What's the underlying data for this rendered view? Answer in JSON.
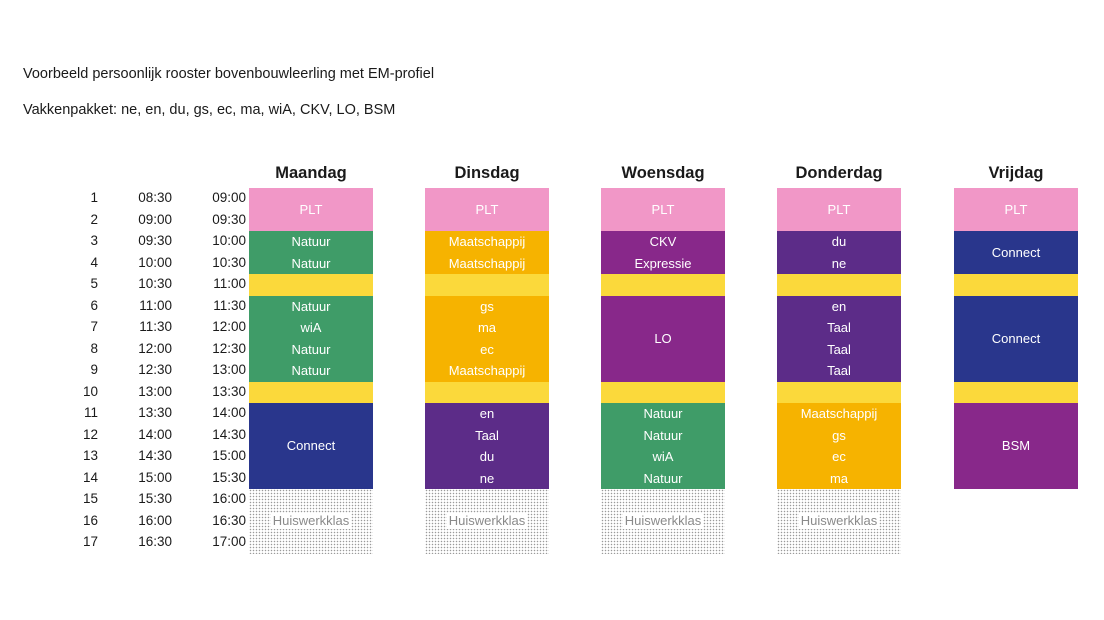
{
  "title": "Voorbeeld persoonlijk rooster bovenbouwleerling met EM-profiel",
  "subtitle": "Vakkenpakket: ne, en, du, gs, ec, ma, wiA, CKV, LO, BSM",
  "colors": {
    "pink": "#f197c7",
    "green": "#3f9c68",
    "yellow": "#fbd93b",
    "orange": "#f6b300",
    "purple": "#5c2c88",
    "magenta": "#88288a",
    "navy": "#29368c"
  },
  "periods": [
    {
      "num": "1",
      "start": "08:30",
      "end": "09:00"
    },
    {
      "num": "2",
      "start": "09:00",
      "end": "09:30"
    },
    {
      "num": "3",
      "start": "09:30",
      "end": "10:00"
    },
    {
      "num": "4",
      "start": "10:00",
      "end": "10:30"
    },
    {
      "num": "5",
      "start": "10:30",
      "end": "11:00"
    },
    {
      "num": "6",
      "start": "11:00",
      "end": "11:30"
    },
    {
      "num": "7",
      "start": "11:30",
      "end": "12:00"
    },
    {
      "num": "8",
      "start": "12:00",
      "end": "12:30"
    },
    {
      "num": "9",
      "start": "12:30",
      "end": "13:00"
    },
    {
      "num": "10",
      "start": "13:00",
      "end": "13:30"
    },
    {
      "num": "11",
      "start": "13:30",
      "end": "14:00"
    },
    {
      "num": "12",
      "start": "14:00",
      "end": "14:30"
    },
    {
      "num": "13",
      "start": "14:30",
      "end": "15:00"
    },
    {
      "num": "14",
      "start": "15:00",
      "end": "15:30"
    },
    {
      "num": "15",
      "start": "15:30",
      "end": "16:00"
    },
    {
      "num": "16",
      "start": "16:00",
      "end": "16:30"
    },
    {
      "num": "17",
      "start": "16:30",
      "end": "17:00"
    }
  ],
  "days": [
    {
      "name": "Maandag",
      "blocks": [
        {
          "start": 1,
          "span": 2,
          "color": "pink",
          "lines": [
            "PLT"
          ]
        },
        {
          "start": 3,
          "span": 2,
          "color": "green",
          "lines": [
            "Natuur",
            "Natuur"
          ]
        },
        {
          "start": 5,
          "span": 1,
          "color": "yellow",
          "lines": []
        },
        {
          "start": 6,
          "span": 4,
          "color": "green",
          "lines": [
            "Natuur",
            "wiA",
            "Natuur",
            "Natuur"
          ]
        },
        {
          "start": 10,
          "span": 1,
          "color": "yellow",
          "lines": []
        },
        {
          "start": 11,
          "span": 4,
          "color": "navy",
          "lines": [
            "Connect"
          ]
        },
        {
          "start": 15,
          "span": 3,
          "color": "dots",
          "lines": [
            "Huiswerkklas"
          ]
        }
      ]
    },
    {
      "name": "Dinsdag",
      "blocks": [
        {
          "start": 1,
          "span": 2,
          "color": "pink",
          "lines": [
            "PLT"
          ]
        },
        {
          "start": 3,
          "span": 2,
          "color": "orange",
          "lines": [
            "Maatschappij",
            "Maatschappij"
          ]
        },
        {
          "start": 5,
          "span": 1,
          "color": "yellow",
          "lines": []
        },
        {
          "start": 6,
          "span": 4,
          "color": "orange",
          "lines": [
            "gs",
            "ma",
            "ec",
            "Maatschappij"
          ]
        },
        {
          "start": 10,
          "span": 1,
          "color": "yellow",
          "lines": []
        },
        {
          "start": 11,
          "span": 4,
          "color": "purple",
          "lines": [
            "en",
            "Taal",
            "du",
            "ne"
          ]
        },
        {
          "start": 15,
          "span": 3,
          "color": "dots",
          "lines": [
            "Huiswerkklas"
          ]
        }
      ]
    },
    {
      "name": "Woensdag",
      "blocks": [
        {
          "start": 1,
          "span": 2,
          "color": "pink",
          "lines": [
            "PLT"
          ]
        },
        {
          "start": 3,
          "span": 2,
          "color": "magenta",
          "lines": [
            "CKV",
            "Expressie"
          ]
        },
        {
          "start": 5,
          "span": 1,
          "color": "yellow",
          "lines": []
        },
        {
          "start": 6,
          "span": 4,
          "color": "magenta",
          "lines": [
            "LO"
          ]
        },
        {
          "start": 10,
          "span": 1,
          "color": "yellow",
          "lines": []
        },
        {
          "start": 11,
          "span": 4,
          "color": "green",
          "lines": [
            "Natuur",
            "Natuur",
            "wiA",
            "Natuur"
          ]
        },
        {
          "start": 15,
          "span": 3,
          "color": "dots",
          "lines": [
            "Huiswerkklas"
          ]
        }
      ]
    },
    {
      "name": "Donderdag",
      "blocks": [
        {
          "start": 1,
          "span": 2,
          "color": "pink",
          "lines": [
            "PLT"
          ]
        },
        {
          "start": 3,
          "span": 2,
          "color": "purple",
          "lines": [
            "du",
            "ne"
          ]
        },
        {
          "start": 5,
          "span": 1,
          "color": "yellow",
          "lines": []
        },
        {
          "start": 6,
          "span": 4,
          "color": "purple",
          "lines": [
            "en",
            "Taal",
            "Taal",
            "Taal"
          ]
        },
        {
          "start": 10,
          "span": 1,
          "color": "yellow",
          "lines": []
        },
        {
          "start": 11,
          "span": 4,
          "color": "orange",
          "lines": [
            "Maatschappij",
            "gs",
            "ec",
            "ma"
          ]
        },
        {
          "start": 15,
          "span": 3,
          "color": "dots",
          "lines": [
            "Huiswerkklas"
          ]
        }
      ]
    },
    {
      "name": "Vrijdag",
      "blocks": [
        {
          "start": 1,
          "span": 2,
          "color": "pink",
          "lines": [
            "PLT"
          ]
        },
        {
          "start": 3,
          "span": 2,
          "color": "navy",
          "lines": [
            "Connect"
          ]
        },
        {
          "start": 5,
          "span": 1,
          "color": "yellow",
          "lines": []
        },
        {
          "start": 6,
          "span": 4,
          "color": "navy",
          "lines": [
            "Connect"
          ]
        },
        {
          "start": 10,
          "span": 1,
          "color": "yellow",
          "lines": []
        },
        {
          "start": 11,
          "span": 4,
          "color": "magenta",
          "lines": [
            "BSM"
          ]
        }
      ]
    }
  ]
}
